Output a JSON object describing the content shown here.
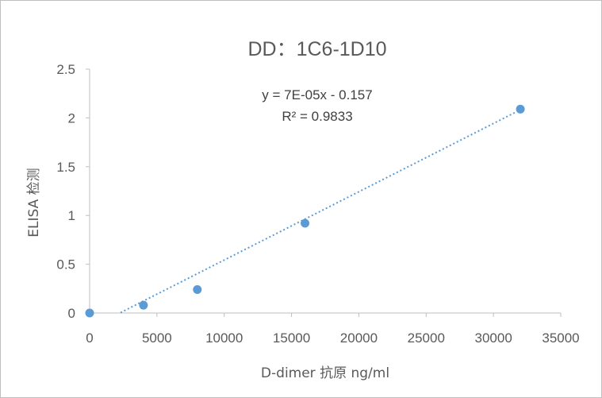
{
  "chart_data": {
    "type": "scatter",
    "title": "DD：1C6-1D10",
    "xlabel": "D-dimer 抗原 ng/ml",
    "ylabel": "ELISA 检测",
    "xlim": [
      0,
      35000
    ],
    "ylim": [
      0,
      2.5
    ],
    "x_ticks": [
      0,
      5000,
      10000,
      15000,
      20000,
      25000,
      30000,
      35000
    ],
    "x_tick_labels": [
      "0",
      "5000",
      "10000",
      "15000",
      "20000",
      "25000",
      "30000",
      "35000"
    ],
    "y_ticks": [
      0,
      0.5,
      1,
      1.5,
      2,
      2.5
    ],
    "y_tick_labels": [
      "0",
      "0.5",
      "1",
      "1.5",
      "2",
      "2.5"
    ],
    "grid": false,
    "legend": "none",
    "series": [
      {
        "x": [
          0,
          4000,
          8000,
          16000,
          32000
        ],
        "y": [
          0,
          0.08,
          0.24,
          0.92,
          2.09
        ],
        "color": "#5b9bd5"
      }
    ],
    "trendline": {
      "type": "linear",
      "slope": 7e-05,
      "intercept": -0.157,
      "x_range": [
        2300,
        32000
      ],
      "style": "dotted",
      "color": "#5b9bd5",
      "equation_label": "y = 7E-05x - 0.157",
      "r2_label": "R² = 0.9833"
    }
  }
}
